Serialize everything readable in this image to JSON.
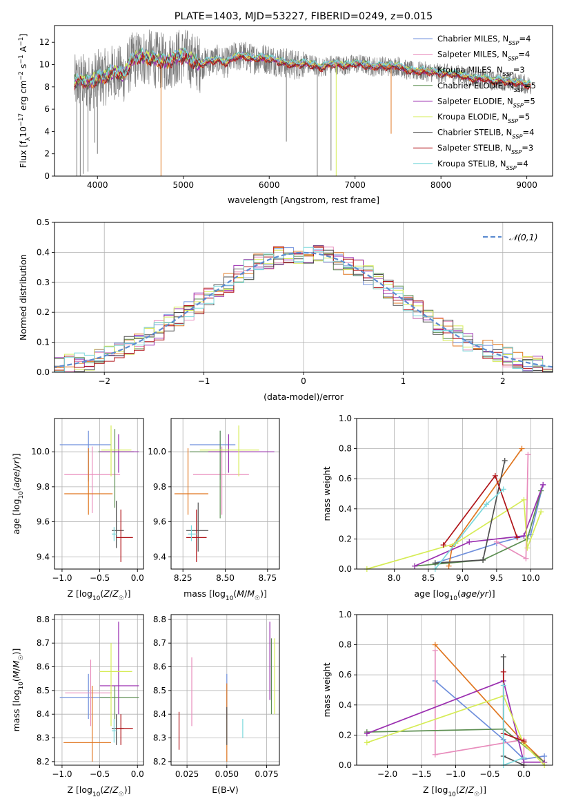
{
  "colors": {
    "Chabrier MILES": "#6f8fdc",
    "Salpeter MILES": "#e88cbc",
    "Kroupa MILES": "#e0761f",
    "Chabrier ELODIE": "#5d8f52",
    "Salpeter ELODIE": "#9b2fb0",
    "Kroupa ELODIE": "#d6ec56",
    "Chabrier STELIB": "#4f4f4f",
    "Salpeter STELIB": "#b01419",
    "Kroupa STELIB": "#7bd8dc",
    "normal": "#5b8bd0",
    "data": "#7a7a7a"
  },
  "chart_data": [
    {
      "id": "spectrum",
      "type": "line",
      "title": "PLATE=1403, MJD=53227, FIBERID=0249, z=0.015",
      "xlabel": "wavelength [Angstrom, rest frame]",
      "ylabel": "Flux [f_λ10^{-17} erg cm^{-2} s^{-1} A^{-1}]",
      "xlim": [
        3500,
        9300
      ],
      "ylim": [
        0,
        13.5
      ],
      "xticks": [
        4000,
        5000,
        6000,
        7000,
        8000,
        9000
      ],
      "yticks": [
        0,
        2,
        4,
        6,
        8,
        10,
        12
      ],
      "legend_position": "top-right",
      "series_names": [
        "Chabrier MILES",
        "Salpeter MILES",
        "Kroupa MILES",
        "Chabrier ELODIE",
        "Salpeter ELODIE",
        "Kroupa ELODIE",
        "Chabrier STELIB",
        "Salpeter STELIB",
        "Kroupa STELIB"
      ],
      "legend_labels": [
        "Chabrier MILES, N_SSP=4",
        "Salpeter MILES, N_SSP=4",
        "Kroupa MILES, N_SSP=3",
        "Chabrier ELODIE, N_SSP=5",
        "Salpeter ELODIE, N_SSP=5",
        "Kroupa ELODIE, N_SSP=5",
        "Chabrier STELIB, N_SSP=4",
        "Salpeter STELIB, N_SSP=3",
        "Kroupa STELIB, N_SSP=4"
      ],
      "data_series": "observed spectrum (grey)",
      "continuum": {
        "x": [
          3730,
          3800,
          3900,
          4000,
          4100,
          4200,
          4300,
          4400,
          4500,
          4600,
          4700,
          4800,
          4900,
          5000,
          5100,
          5200,
          5300,
          5400,
          5500,
          5600,
          5700,
          5800,
          5900,
          6000,
          6100,
          6200,
          6300,
          6400,
          6500,
          6600,
          6700,
          6800,
          6900,
          7000,
          7100,
          7200,
          7300,
          7400,
          7500,
          7600,
          7700,
          7800,
          7900,
          8000,
          8100,
          8200,
          8300,
          8400,
          8500,
          8600,
          8700,
          8800,
          8900,
          9000,
          9050
        ],
        "y": [
          8.3,
          8.6,
          8.3,
          8.8,
          8.9,
          9.4,
          9.0,
          10.3,
          10.7,
          10.6,
          10.4,
          10.2,
          10.6,
          10.8,
          10.4,
          10.0,
          10.3,
          10.4,
          10.1,
          10.7,
          10.8,
          10.5,
          10.6,
          10.5,
          10.3,
          10.1,
          10.0,
          10.1,
          10.0,
          9.7,
          10.0,
          10.0,
          9.9,
          10.1,
          10.0,
          9.8,
          9.9,
          9.8,
          9.9,
          9.5,
          9.4,
          9.4,
          9.3,
          9.2,
          9.2,
          9.1,
          8.9,
          8.7,
          8.8,
          8.5,
          8.6,
          8.4,
          8.4,
          8.2,
          8.1
        ]
      },
      "dips": [
        {
          "x": 3760,
          "min": 0,
          "series": "data"
        },
        {
          "x": 3800,
          "min": 0,
          "series": "data"
        },
        {
          "x": 3835,
          "min": 0.2,
          "series": "data"
        },
        {
          "x": 3890,
          "min": 0.4,
          "series": "data"
        },
        {
          "x": 3970,
          "min": 3.0,
          "series": "data"
        },
        {
          "x": 4000,
          "min": 2.0,
          "series": "data"
        },
        {
          "x": 4740,
          "min": 0,
          "series": "Kroupa MILES"
        },
        {
          "x": 6200,
          "min": 3.1,
          "series": "data"
        },
        {
          "x": 6560,
          "min": 0,
          "series": "data"
        },
        {
          "x": 6720,
          "min": 0.5,
          "series": "data"
        },
        {
          "x": 6780,
          "min": 0,
          "series": "Kroupa ELODIE"
        },
        {
          "x": 7420,
          "min": 3.8,
          "series": "Kroupa MILES"
        }
      ]
    },
    {
      "id": "residuals",
      "type": "histogram",
      "xlabel": "(data-model)/error",
      "ylabel": "Normed distribution",
      "xlim": [
        -2.5,
        2.5
      ],
      "ylim": [
        0,
        0.5
      ],
      "xticks": [
        -2,
        -1,
        0,
        1,
        2
      ],
      "yticks": [
        0.0,
        0.1,
        0.2,
        0.3,
        0.4,
        0.5
      ],
      "grid": true,
      "legend_position": "top-right",
      "legend_label": "𝒩(0,1)",
      "bin_width": 0.1,
      "reference_curve": {
        "name": "𝒩(0,1)",
        "mean": 0,
        "sigma": 1,
        "style": "dashed"
      }
    },
    {
      "id": "age-vs-Z",
      "type": "errorbar",
      "xlabel": "Z [log10(Z/Z☉)]",
      "ylabel": "age [log10(age/yr)]",
      "xlim": [
        -1.1,
        0.08
      ],
      "ylim": [
        9.33,
        10.19
      ],
      "xticks": [
        -1.0,
        -0.5,
        0.0
      ],
      "yticks": [
        9.4,
        9.6,
        9.8,
        10.0
      ],
      "grid": true,
      "points": [
        {
          "series": "Chabrier MILES",
          "x": -0.65,
          "y": 10.04,
          "xlo": -1.03,
          "xhi": -0.35,
          "ylo": 9.83,
          "yhi": 10.12
        },
        {
          "series": "Salpeter MILES",
          "x": -0.6,
          "y": 9.87,
          "xlo": -0.97,
          "xhi": -0.23,
          "ylo": 9.65,
          "yhi": 10.03
        },
        {
          "series": "Kroupa MILES",
          "x": -0.65,
          "y": 9.76,
          "xlo": -0.97,
          "xhi": -0.33,
          "ylo": 9.64,
          "yhi": 10.02
        },
        {
          "series": "Chabrier ELODIE",
          "x": -0.3,
          "y": 10.0,
          "xlo": -0.52,
          "xhi": -0.05,
          "ylo": 9.68,
          "yhi": 10.13
        },
        {
          "series": "Salpeter ELODIE",
          "x": -0.25,
          "y": 10.0,
          "xlo": -0.5,
          "xhi": 0.02,
          "ylo": 9.88,
          "yhi": 10.1
        },
        {
          "series": "Kroupa ELODIE",
          "x": -0.35,
          "y": 10.01,
          "xlo": -0.48,
          "xhi": -0.08,
          "ylo": 9.86,
          "yhi": 10.15
        },
        {
          "series": "Chabrier STELIB",
          "x": -0.28,
          "y": 9.55,
          "xlo": -0.34,
          "xhi": -0.18,
          "ylo": 9.45,
          "yhi": 9.72
        },
        {
          "series": "Salpeter STELIB",
          "x": -0.22,
          "y": 9.51,
          "xlo": -0.28,
          "xhi": -0.06,
          "ylo": 9.37,
          "yhi": 9.67
        },
        {
          "series": "Kroupa STELIB",
          "x": -0.31,
          "y": 9.53,
          "xlo": -0.34,
          "xhi": -0.28,
          "ylo": 9.49,
          "yhi": 9.57
        }
      ]
    },
    {
      "id": "age-vs-mass",
      "type": "errorbar",
      "xlabel": "mass [log10(M/M☉)]",
      "ylabel": "",
      "xlim": [
        8.18,
        8.82
      ],
      "ylim": [
        9.33,
        10.19
      ],
      "xticks": [
        8.25,
        8.5,
        8.75
      ],
      "yticks": [
        9.4,
        9.6,
        9.8,
        10.0
      ],
      "grid": true,
      "points": [
        {
          "series": "Chabrier MILES",
          "x": 8.47,
          "y": 10.04,
          "xlo": 8.29,
          "xhi": 8.56,
          "ylo": 9.84,
          "yhi": 10.12
        },
        {
          "series": "Salpeter MILES",
          "x": 8.48,
          "y": 9.87,
          "xlo": 8.31,
          "xhi": 8.64,
          "ylo": 9.64,
          "yhi": 10.03
        },
        {
          "search": null,
          "series": "Kroupa MILES",
          "x": 8.28,
          "y": 9.76,
          "xlo": 8.2,
          "xhi": 8.4,
          "ylo": 9.64,
          "yhi": 10.02
        },
        {
          "series": "Chabrier ELODIE",
          "x": 8.47,
          "y": 10.0,
          "xlo": 8.29,
          "xhi": 8.52,
          "ylo": 9.62,
          "yhi": 10.12
        },
        {
          "series": "Salpeter ELODIE",
          "x": 8.52,
          "y": 10.0,
          "xlo": 8.4,
          "xhi": 8.79,
          "ylo": 9.88,
          "yhi": 10.1
        },
        {
          "series": "Kroupa ELODIE",
          "x": 8.58,
          "y": 10.01,
          "xlo": 8.35,
          "xhi": 8.7,
          "ylo": 9.86,
          "yhi": 10.15
        },
        {
          "series": "Chabrier STELIB",
          "x": 8.34,
          "y": 9.55,
          "xlo": 8.27,
          "xhi": 8.4,
          "ylo": 9.43,
          "yhi": 9.71
        },
        {
          "series": "Salpeter STELIB",
          "x": 8.33,
          "y": 9.51,
          "xlo": 8.27,
          "xhi": 8.39,
          "ylo": 9.37,
          "yhi": 9.67
        },
        {
          "series": "Kroupa STELIB",
          "x": 8.3,
          "y": 9.53,
          "xlo": 8.28,
          "xhi": 8.33,
          "ylo": 9.49,
          "yhi": 9.58
        }
      ]
    },
    {
      "id": "massweight-vs-age",
      "type": "line",
      "xlabel": "age [log10(age/yr)]",
      "ylabel": "mass weight",
      "xlim": [
        7.45,
        10.32
      ],
      "ylim": [
        0,
        1.0
      ],
      "xticks": [
        8.0,
        8.5,
        9.0,
        9.5,
        10.0
      ],
      "yticks": [
        0.0,
        0.2,
        0.4,
        0.6,
        0.8,
        1.0
      ],
      "grid": true,
      "series": [
        {
          "series": "Chabrier MILES",
          "x": [
            8.6,
            9.5,
            10.0,
            10.18
          ],
          "y": [
            0.04,
            0.17,
            0.23,
            0.56
          ]
        },
        {
          "series": "Salpeter MILES",
          "x": [
            9.5,
            9.93,
            9.96
          ],
          "y": [
            0.18,
            0.07,
            0.76
          ]
        },
        {
          "series": "Kroupa MILES",
          "x": [
            8.8,
            8.85,
            9.87
          ],
          "y": [
            0.02,
            0.15,
            0.8
          ]
        },
        {
          "series": "Chabrier ELODIE",
          "x": [
            8.3,
            9.3,
            9.95,
            10.15
          ],
          "y": [
            0.02,
            0.06,
            0.2,
            0.52
          ]
        },
        {
          "series": "Salpeter ELODIE",
          "x": [
            8.3,
            9.1,
            9.9,
            10.18
          ],
          "y": [
            0.02,
            0.18,
            0.22,
            0.56
          ]
        },
        {
          "series": "Kroupa ELODIE",
          "x": [
            7.6,
            8.9,
            9.9,
            9.95,
            10.15
          ],
          "y": [
            0.0,
            0.17,
            0.46,
            0.14,
            0.38
          ]
        },
        {
          "series": "Chabrier STELIB",
          "x": [
            8.6,
            9.3,
            9.62
          ],
          "y": [
            0.04,
            0.06,
            0.72
          ]
        },
        {
          "series": "Salpeter STELIB",
          "x": [
            8.72,
            9.48,
            9.8
          ],
          "y": [
            0.16,
            0.62,
            0.21
          ]
        },
        {
          "series": "Kroupa STELIB",
          "x": [
            8.6,
            9.35,
            9.6
          ],
          "y": [
            0.0,
            0.43,
            0.53
          ]
        }
      ]
    },
    {
      "id": "mass-vs-Z",
      "type": "errorbar",
      "xlabel": "Z [log10(Z/Z☉)]",
      "ylabel": "mass [log10(M/M☉)]",
      "xlim": [
        -1.1,
        0.08
      ],
      "ylim": [
        8.185,
        8.82
      ],
      "xticks": [
        -1.0,
        -0.5,
        0.0
      ],
      "yticks": [
        8.2,
        8.3,
        8.4,
        8.5,
        8.6,
        8.7,
        8.8
      ],
      "grid": true,
      "points": [
        {
          "series": "Chabrier MILES",
          "x": -0.65,
          "y": 8.47,
          "xlo": -1.03,
          "xhi": -0.33,
          "ylo": 8.38,
          "yhi": 8.57
        },
        {
          "series": "Salpeter MILES",
          "x": -0.62,
          "y": 8.49,
          "xlo": -0.96,
          "xhi": -0.34,
          "ylo": 8.35,
          "yhi": 8.63
        },
        {
          "series": "Kroupa MILES",
          "x": -0.6,
          "y": 8.28,
          "xlo": -0.98,
          "xhi": -0.35,
          "ylo": 8.2,
          "yhi": 8.52
        },
        {
          "series": "Chabrier ELODIE",
          "x": -0.3,
          "y": 8.47,
          "xlo": -0.5,
          "xhi": 0.02,
          "ylo": 8.38,
          "yhi": 8.52
        },
        {
          "series": "Salpeter ELODIE",
          "x": -0.25,
          "y": 8.52,
          "xlo": -0.5,
          "xhi": 0.02,
          "ylo": 8.4,
          "yhi": 8.79
        },
        {
          "series": "Kroupa ELODIE",
          "x": -0.35,
          "y": 8.58,
          "xlo": -0.5,
          "xhi": -0.07,
          "ylo": 8.35,
          "yhi": 8.7
        },
        {
          "series": "Chabrier STELIB",
          "x": -0.28,
          "y": 8.34,
          "xlo": -0.34,
          "xhi": -0.18,
          "ylo": 8.27,
          "yhi": 8.4
        },
        {
          "series": "Salpeter STELIB",
          "x": -0.22,
          "y": 8.34,
          "xlo": -0.28,
          "xhi": -0.06,
          "ylo": 8.27,
          "yhi": 8.4
        },
        {
          "series": "Kroupa STELIB",
          "x": -0.31,
          "y": 8.33,
          "xlo": -0.34,
          "xhi": -0.28,
          "ylo": 8.28,
          "yhi": 8.38
        }
      ]
    },
    {
      "id": "mass-vs-EBV",
      "type": "errorbar",
      "xlabel": "E(B-V)",
      "ylabel": "",
      "xlim": [
        0.015,
        0.083
      ],
      "ylim": [
        8.185,
        8.82
      ],
      "xticks": [
        0.025,
        0.05,
        0.075
      ],
      "yticks": [
        8.2,
        8.3,
        8.4,
        8.5,
        8.6,
        8.7,
        8.8
      ],
      "grid": true,
      "points": [
        {
          "series": "Chabrier MILES",
          "x": 0.05,
          "ylo": 8.38,
          "yhi": 8.57
        },
        {
          "series": "Salpeter MILES",
          "x": 0.028,
          "ylo": 8.35,
          "yhi": 8.64
        },
        {
          "series": "Kroupa MILES",
          "x": 0.05,
          "ylo": 8.2,
          "yhi": 8.53
        },
        {
          "series": "Chabrier ELODIE",
          "x": 0.078,
          "ylo": 8.4,
          "yhi": 8.72
        },
        {
          "series": "Salpeter ELODIE",
          "x": 0.077,
          "ylo": 8.46,
          "yhi": 8.79
        },
        {
          "series": "Kroupa ELODIE",
          "x": 0.08,
          "ylo": 8.4,
          "yhi": 8.72
        },
        {
          "series": "Chabrier STELIB",
          "x": 0.05,
          "ylo": 8.27,
          "yhi": 8.43
        },
        {
          "series": "Salpeter STELIB",
          "x": 0.02,
          "ylo": 8.25,
          "yhi": 8.41
        },
        {
          "series": "Kroupa STELIB",
          "x": 0.06,
          "ylo": 8.3,
          "yhi": 8.38
        }
      ]
    },
    {
      "id": "massweight-vs-Z",
      "type": "line",
      "xlabel": "Z [log10(Z/Z☉)]",
      "ylabel": "mass weight",
      "xlim": [
        -2.45,
        0.42
      ],
      "ylim": [
        0,
        1.0
      ],
      "xticks": [
        -2.0,
        -1.5,
        -1.0,
        -0.5,
        0.0
      ],
      "yticks": [
        0.0,
        0.2,
        0.4,
        0.6,
        0.8,
        1.0
      ],
      "grid": true,
      "series": [
        {
          "series": "Chabrier MILES",
          "x": [
            -1.3,
            -0.3,
            0.0,
            0.3
          ],
          "y": [
            0.56,
            0.17,
            0.04,
            0.06
          ]
        },
        {
          "series": "Salpeter MILES",
          "x": [
            -1.3,
            -1.3,
            0.0,
            0.0
          ],
          "y": [
            0.76,
            0.07,
            0.17,
            0.0
          ]
        },
        {
          "series": "Kroupa MILES",
          "x": [
            -1.3,
            0.0,
            0.3
          ],
          "y": [
            0.8,
            0.15,
            0.02
          ]
        },
        {
          "series": "Chabrier ELODIE",
          "x": [
            -2.3,
            -0.3,
            0.3
          ],
          "y": [
            0.22,
            0.24,
            0.02
          ]
        },
        {
          "series": "Salpeter ELODIE",
          "x": [
            -2.3,
            -0.3,
            0.0,
            0.3
          ],
          "y": [
            0.21,
            0.56,
            0.02,
            0.02
          ]
        },
        {
          "series": "Kroupa ELODIE",
          "x": [
            -2.3,
            -0.3,
            0.0,
            0.3
          ],
          "y": [
            0.15,
            0.46,
            0.14,
            0.0
          ]
        },
        {
          "series": "Chabrier STELIB",
          "x": [
            -0.3,
            -0.3,
            0.0
          ],
          "y": [
            0.72,
            0.06,
            0.0
          ]
        },
        {
          "series": "Salpeter STELIB",
          "x": [
            -0.3,
            -0.3,
            0.0
          ],
          "y": [
            0.62,
            0.21,
            0.16
          ]
        },
        {
          "series": "Kroupa STELIB",
          "x": [
            -0.3,
            -0.3,
            0.0
          ],
          "y": [
            0.53,
            0.0,
            0.05
          ]
        }
      ]
    }
  ]
}
